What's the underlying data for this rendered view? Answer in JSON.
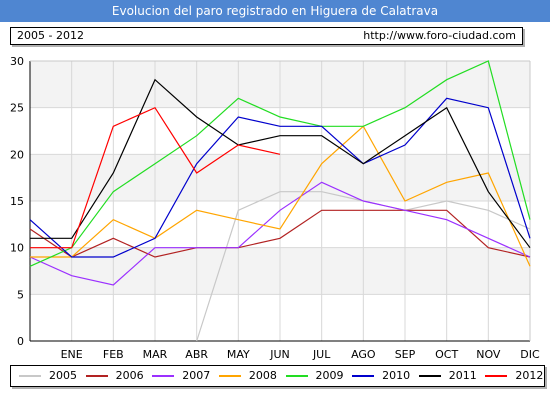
{
  "header": {
    "title": "Evolucion del paro registrado en Higuera de Calatrava",
    "period": "2005 - 2012",
    "url": "http://www.foro-ciudad.com"
  },
  "chart_data": {
    "type": "line",
    "title": "Evolucion del paro registrado en Higuera de Calatrava",
    "categories": [
      "",
      "ENE",
      "FEB",
      "MAR",
      "ABR",
      "MAY",
      "JUN",
      "JUL",
      "AGO",
      "SEP",
      "OCT",
      "NOV",
      "DIC"
    ],
    "yticks": [
      0,
      5,
      10,
      15,
      20,
      25,
      30
    ],
    "ylim": [
      0,
      30
    ],
    "grid": true,
    "legend_position": "bottom",
    "series": [
      {
        "name": "2005",
        "color": "#c8c8c8",
        "values": [
          null,
          null,
          null,
          null,
          0,
          14,
          16,
          16,
          15,
          14,
          15,
          14,
          12
        ]
      },
      {
        "name": "2006",
        "color": "#b22222",
        "values": [
          12,
          9,
          11,
          9,
          10,
          10,
          11,
          14,
          14,
          14,
          14,
          10,
          9
        ]
      },
      {
        "name": "2007",
        "color": "#9b30ff",
        "values": [
          9,
          7,
          6,
          10,
          10,
          10,
          14,
          17,
          15,
          14,
          13,
          11,
          9
        ]
      },
      {
        "name": "2008",
        "color": "#ffa500",
        "values": [
          9,
          9,
          13,
          11,
          14,
          13,
          12,
          19,
          23,
          15,
          17,
          18,
          8
        ]
      },
      {
        "name": "2009",
        "color": "#22dd22",
        "values": [
          8,
          10,
          16,
          19,
          22,
          26,
          24,
          23,
          23,
          25,
          28,
          30,
          13
        ]
      },
      {
        "name": "2010",
        "color": "#0000cc",
        "values": [
          13,
          9,
          9,
          11,
          19,
          24,
          23,
          23,
          19,
          21,
          26,
          25,
          11
        ]
      },
      {
        "name": "2011",
        "color": "#000000",
        "values": [
          11,
          11,
          18,
          28,
          24,
          21,
          22,
          22,
          19,
          22,
          25,
          16,
          10
        ]
      },
      {
        "name": "2012",
        "color": "#ff0000",
        "values": [
          10,
          10,
          23,
          25,
          18,
          21,
          20,
          null,
          null,
          null,
          null,
          null,
          null
        ]
      }
    ]
  }
}
